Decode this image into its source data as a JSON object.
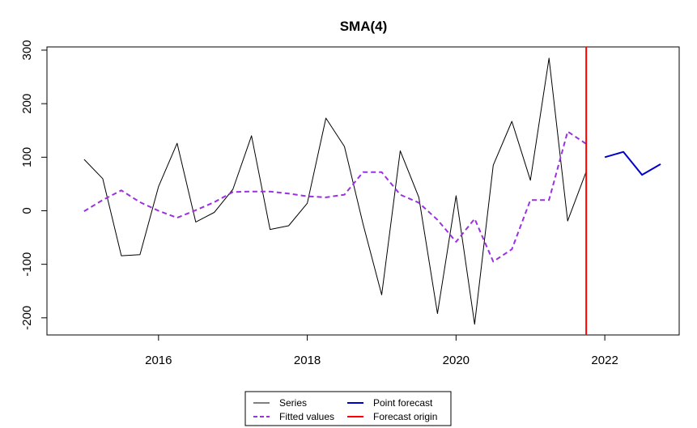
{
  "chart_data": {
    "type": "line",
    "title": "SMA(4)",
    "xlabel": "",
    "ylabel": "",
    "xlim": [
      2014.5,
      2023.0
    ],
    "ylim": [
      -232,
      306
    ],
    "x_ticks": [
      2016,
      2018,
      2020,
      2022
    ],
    "y_ticks": [
      -200,
      -100,
      0,
      100,
      200,
      300
    ],
    "grid": false,
    "legend_position": "bottom",
    "forecast_origin": 2021.75,
    "series": [
      {
        "name": "Series",
        "color": "#000000",
        "style": "solid",
        "x": [
          2015.0,
          2015.25,
          2015.5,
          2015.75,
          2016.0,
          2016.25,
          2016.5,
          2016.75,
          2017.0,
          2017.25,
          2017.5,
          2017.75,
          2018.0,
          2018.25,
          2018.5,
          2018.75,
          2019.0,
          2019.25,
          2019.5,
          2019.75,
          2020.0,
          2020.25,
          2020.5,
          2020.75,
          2021.0,
          2021.25,
          2021.5,
          2021.75
        ],
        "values": [
          96,
          60,
          -84,
          -82,
          45,
          126,
          -21,
          -3,
          40,
          140,
          -35,
          -28,
          14,
          173,
          120,
          -25,
          -157,
          112,
          25,
          -192,
          28,
          -212,
          85,
          167,
          57,
          285,
          -19,
          73
        ]
      },
      {
        "name": "Fitted values",
        "color": "#9b30e0",
        "style": "dashed",
        "x": [
          2015.0,
          2015.25,
          2015.5,
          2015.75,
          2016.0,
          2016.25,
          2016.5,
          2016.75,
          2017.0,
          2017.25,
          2017.5,
          2017.75,
          2018.0,
          2018.25,
          2018.5,
          2018.75,
          2019.0,
          2019.25,
          2019.5,
          2019.75,
          2020.0,
          2020.25,
          2020.5,
          2020.75,
          2021.0,
          2021.25,
          2021.5,
          2021.75
        ],
        "values": [
          -1,
          20,
          38,
          16,
          0,
          -13,
          1,
          16,
          35,
          36,
          36,
          32,
          27,
          25,
          30,
          72,
          72,
          30,
          15,
          -17,
          -58,
          -15,
          -95,
          -72,
          20,
          20,
          148,
          125
        ]
      },
      {
        "name": "Point forecast",
        "color": "#0000cd",
        "style": "solid",
        "x": [
          2022.0,
          2022.25,
          2022.5,
          2022.75
        ],
        "values": [
          100,
          110,
          67,
          87
        ]
      }
    ],
    "legend": [
      {
        "label": "Series",
        "color": "#000000",
        "style": "solid"
      },
      {
        "label": "Point forecast",
        "color": "#0000cd",
        "style": "solid"
      },
      {
        "label": "Fitted values",
        "color": "#9b30e0",
        "style": "dashed"
      },
      {
        "label": "Forecast origin",
        "color": "#ff0000",
        "style": "solid"
      }
    ],
    "forecast_origin_color": "#ff0000"
  }
}
